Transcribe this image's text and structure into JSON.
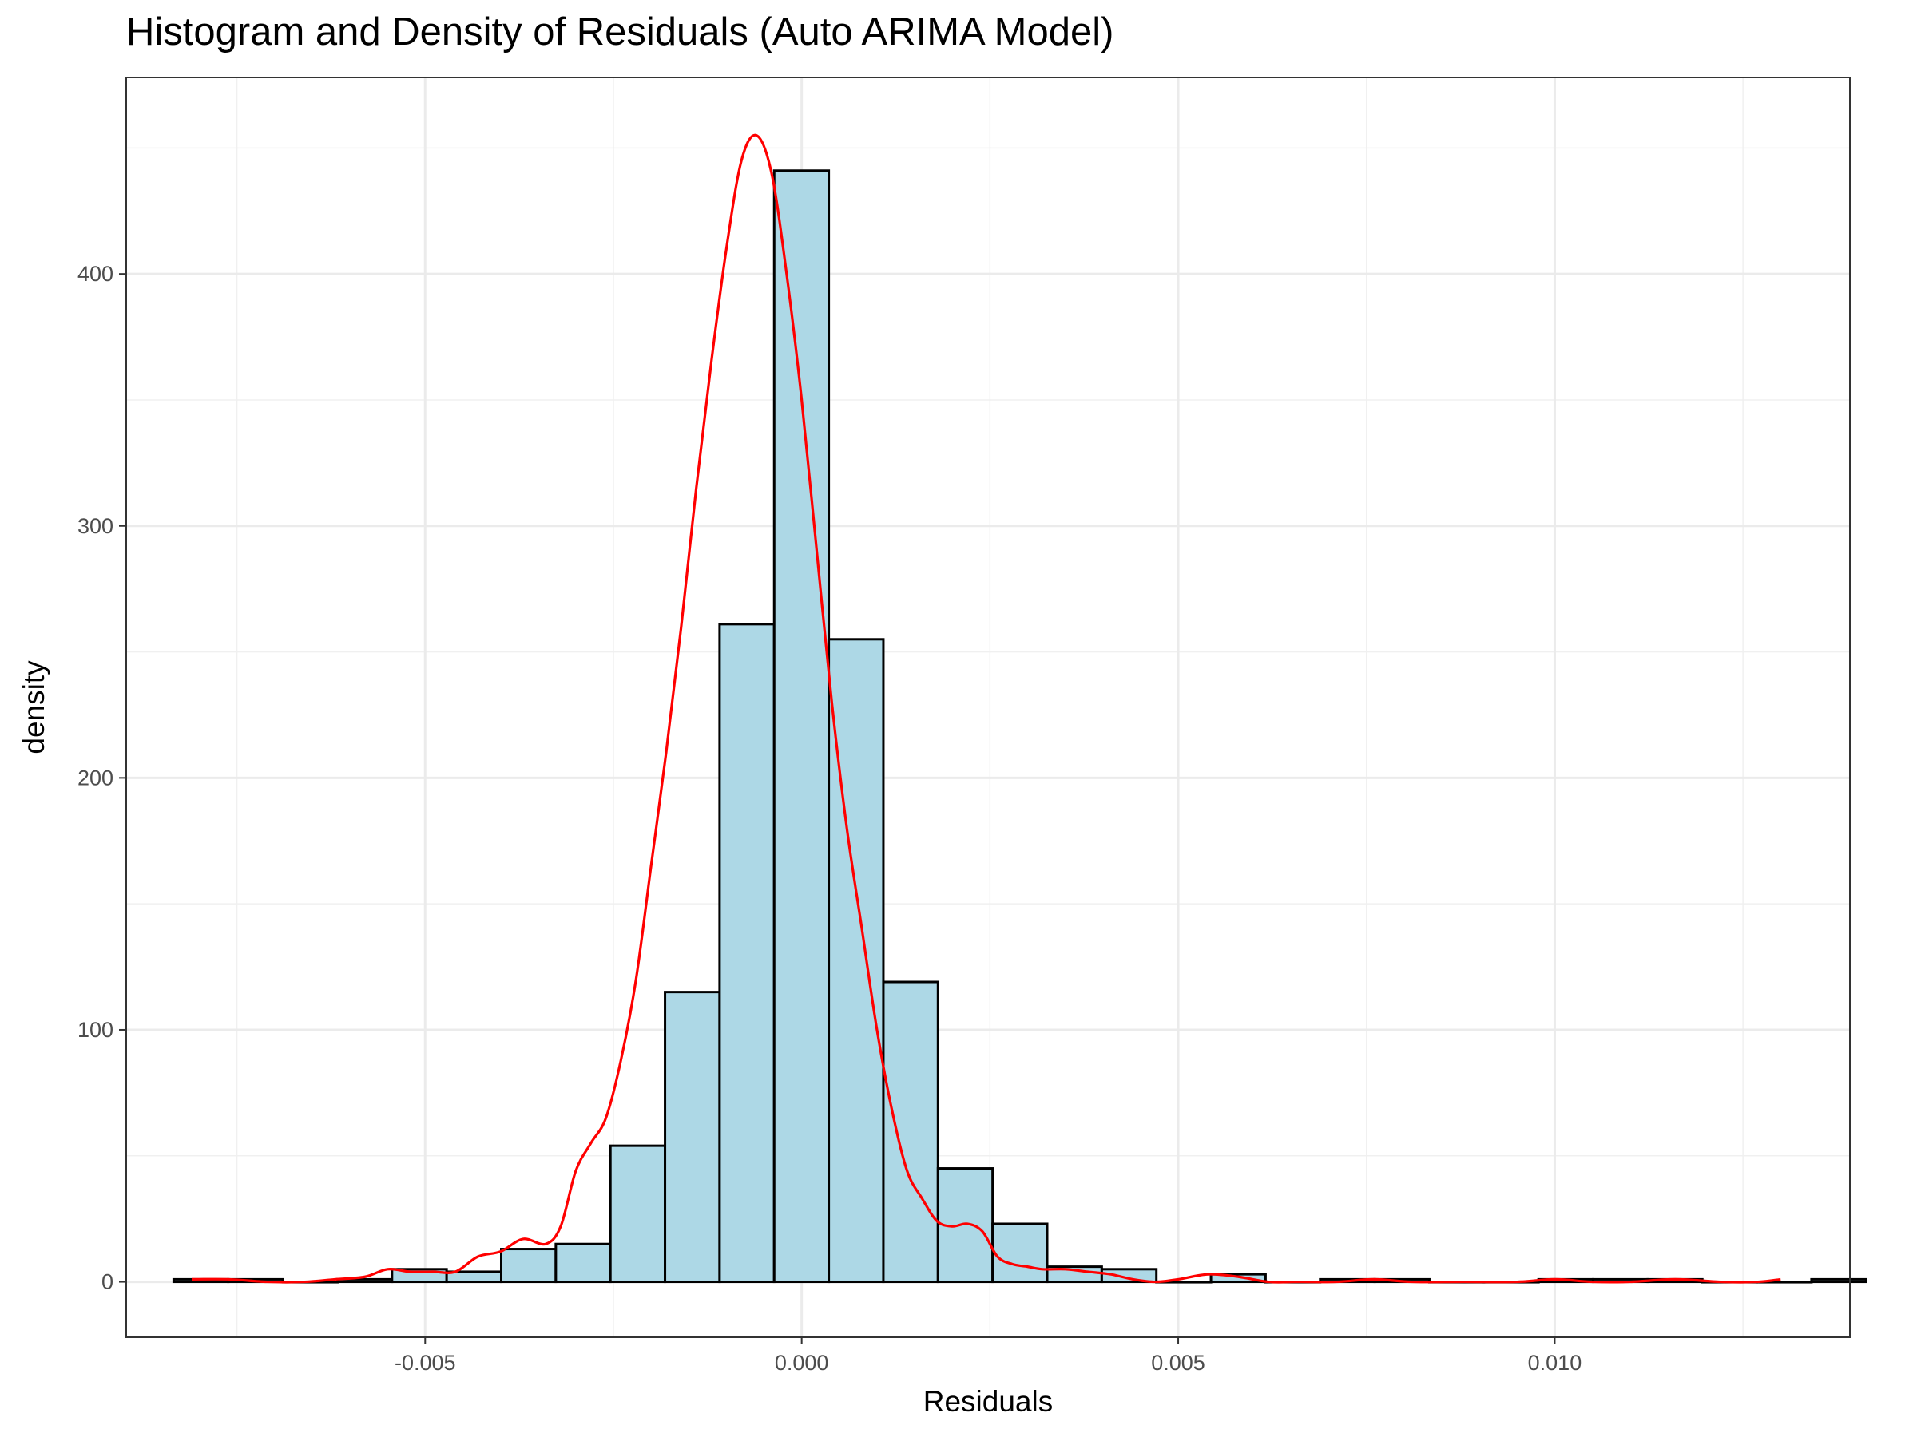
{
  "chart_data": {
    "type": "histogram",
    "title": "Histogram and Density of Residuals (Auto ARIMA Model)",
    "xlabel": "Residuals",
    "ylabel": "density",
    "xlim": [
      -0.00897,
      0.01392
    ],
    "ylim": [
      -22,
      478
    ],
    "grid": true,
    "x_ticks": [
      {
        "value": -0.005,
        "label": "-0.005"
      },
      {
        "value": 0.0,
        "label": "0.000"
      },
      {
        "value": 0.005,
        "label": "0.005"
      },
      {
        "value": 0.01,
        "label": "0.010"
      }
    ],
    "y_ticks": [
      {
        "value": 0,
        "label": "0"
      },
      {
        "value": 100,
        "label": "100"
      },
      {
        "value": 200,
        "label": "200"
      },
      {
        "value": 300,
        "label": "300"
      },
      {
        "value": 400,
        "label": "400"
      }
    ],
    "histogram": {
      "fill": "#add8e6",
      "stroke": "#000000",
      "bin_start": -0.00834,
      "bin_width": 0.000725,
      "values": [
        1,
        1,
        0,
        1,
        5,
        4,
        13,
        15,
        54,
        115,
        261,
        441,
        255,
        119,
        45,
        23,
        6,
        5,
        0,
        3,
        0,
        1,
        1,
        0,
        0,
        1,
        1,
        1,
        0,
        0,
        1
      ]
    },
    "density": {
      "color": "#ff0000",
      "x": [
        -0.0081,
        -0.0076,
        -0.0071,
        -0.0066,
        -0.0062,
        -0.0058,
        -0.0055,
        -0.0052,
        -0.0049,
        -0.0046,
        -0.0043,
        -0.004,
        -0.0037,
        -0.0034,
        -0.0032,
        -0.003,
        -0.0028,
        -0.0026,
        -0.0024,
        -0.0022,
        -0.002,
        -0.0018,
        -0.0016,
        -0.0014,
        -0.0012,
        -0.001,
        -0.0008,
        -0.0006,
        -0.0004,
        -0.0002,
        0.0,
        0.0002,
        0.0004,
        0.0006,
        0.0008,
        0.001,
        0.0012,
        0.0014,
        0.0016,
        0.0018,
        0.002,
        0.0022,
        0.0024,
        0.0026,
        0.0028,
        0.003,
        0.0032,
        0.0035,
        0.0038,
        0.0041,
        0.0044,
        0.0047,
        0.005,
        0.0054,
        0.0058,
        0.0062,
        0.0066,
        0.0071,
        0.0076,
        0.0081,
        0.0088,
        0.0095,
        0.01,
        0.0105,
        0.011,
        0.0116,
        0.0122,
        0.0127,
        0.013
      ],
      "y": [
        1,
        1,
        0,
        0,
        1,
        2,
        5,
        4,
        4,
        4,
        10,
        12,
        17,
        15,
        22,
        44,
        55,
        65,
        88,
        120,
        165,
        210,
        260,
        315,
        365,
        410,
        445,
        455,
        440,
        400,
        350,
        290,
        230,
        180,
        140,
        100,
        68,
        44,
        33,
        24,
        22,
        23,
        20,
        10,
        7,
        6,
        5,
        5,
        4,
        3,
        1,
        0,
        1,
        3,
        2,
        0,
        0,
        0,
        1,
        0,
        0,
        0,
        1,
        0,
        0,
        1,
        0,
        0,
        1
      ]
    }
  }
}
